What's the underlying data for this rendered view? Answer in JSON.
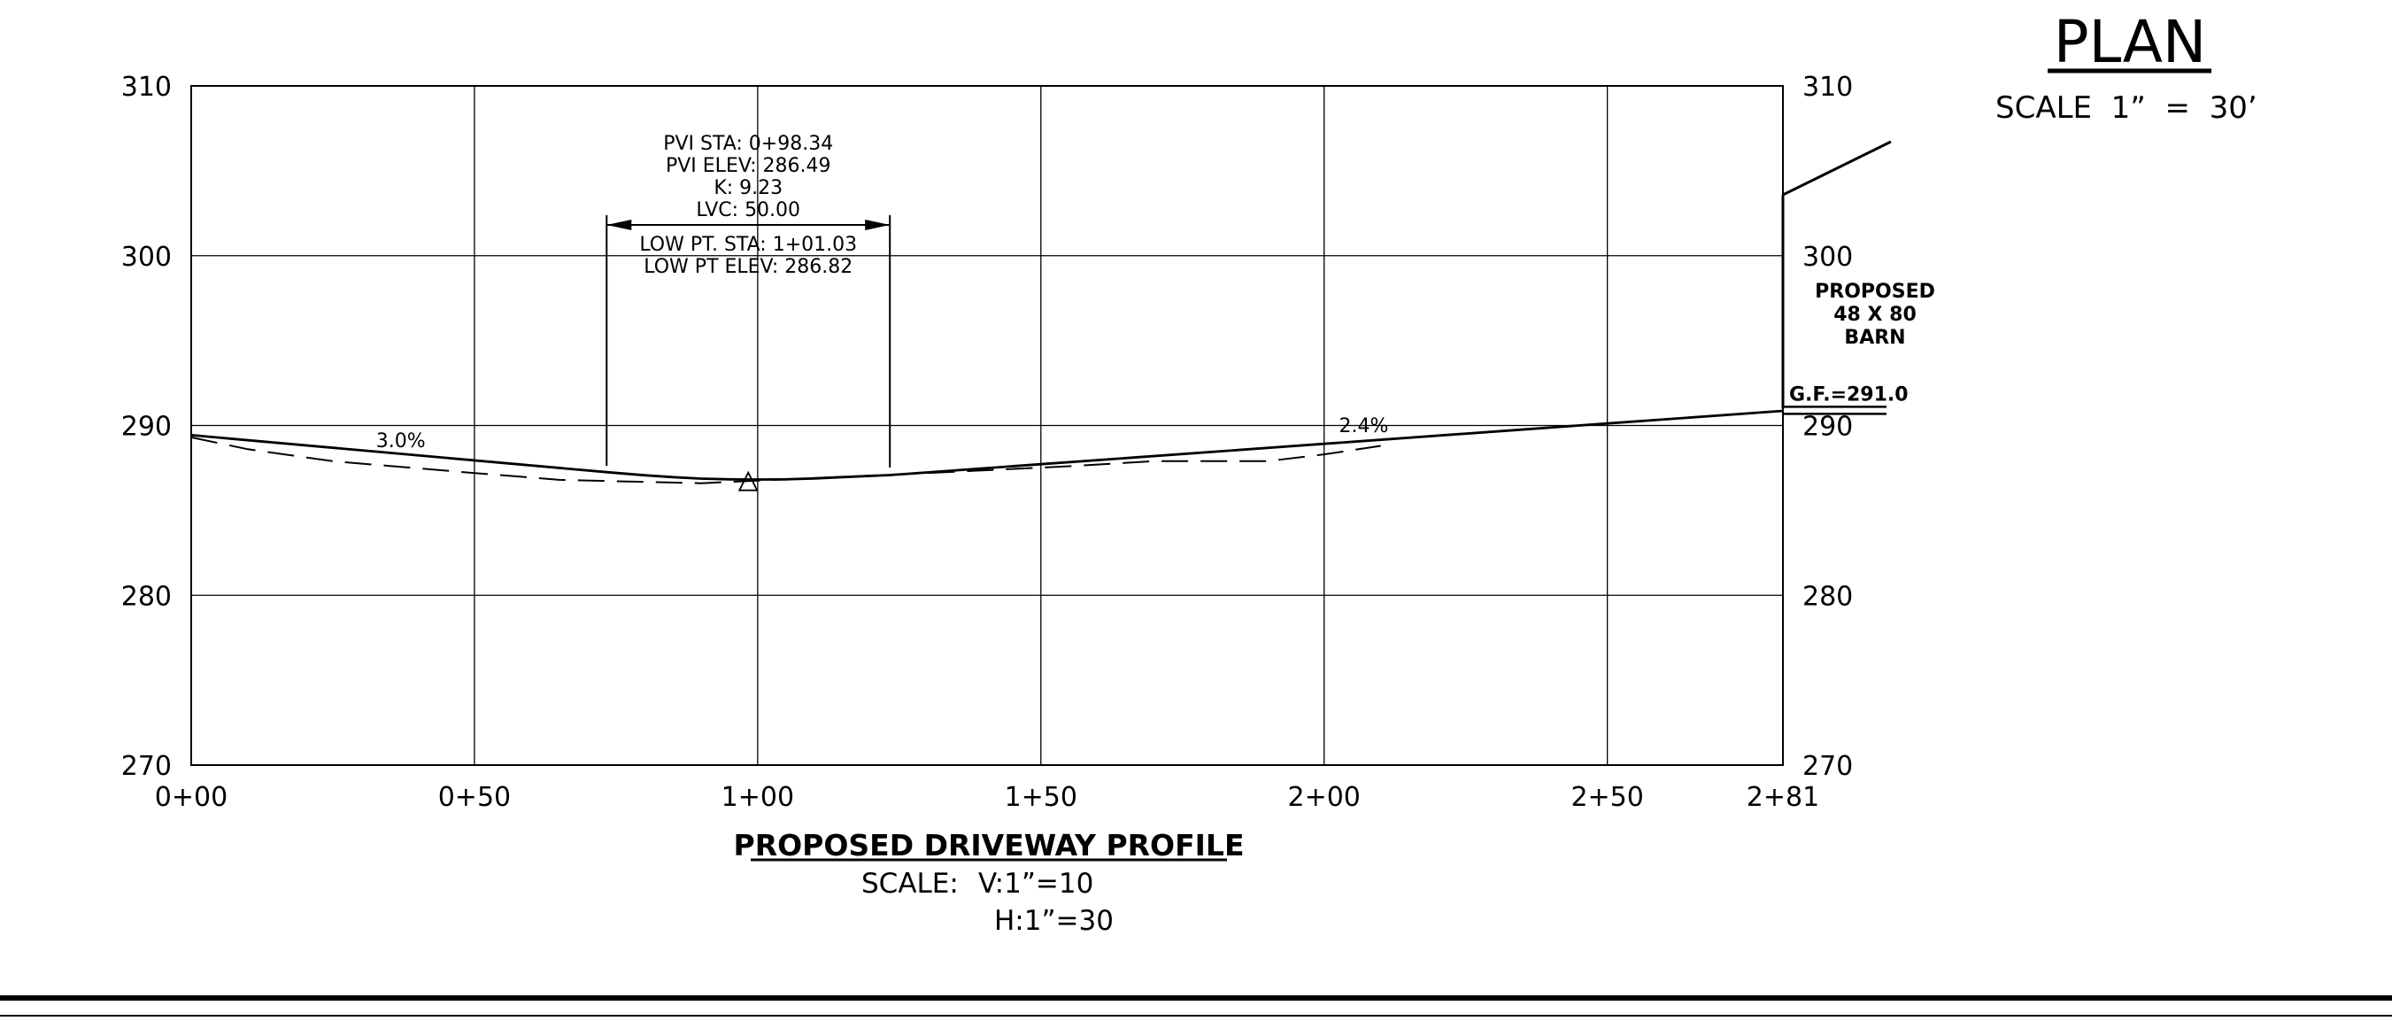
{
  "chart_data": {
    "type": "line",
    "x_ticks": [
      "0+00",
      "0+50",
      "1+00",
      "1+50",
      "2+00",
      "2+50",
      "2+81"
    ],
    "x_tick_values": [
      0,
      50,
      100,
      150,
      200,
      250,
      281
    ],
    "y_ticks": [
      270,
      280,
      290,
      300,
      310
    ],
    "xlim": [
      0,
      281
    ],
    "ylim": [
      270,
      310
    ],
    "grid": true,
    "series": [
      {
        "name": "",
        "style": "solid",
        "x": [
          0,
          73.34,
          80,
          85,
          90,
          95,
          98.34,
          101.03,
          105,
          110,
          115,
          123.34,
          150,
          200,
          250,
          281
        ],
        "y": [
          289.43,
          287.25,
          287.07,
          286.96,
          286.87,
          286.83,
          286.82,
          286.82,
          286.83,
          286.88,
          286.96,
          287.08,
          287.72,
          288.92,
          290.12,
          290.86
        ]
      },
      {
        "name": "",
        "style": "dashed",
        "x": [
          0,
          10,
          25,
          50,
          65,
          90,
          110,
          130,
          155,
          170,
          190,
          200,
          210
        ],
        "y": [
          289.3,
          288.6,
          287.9,
          287.2,
          286.8,
          286.6,
          286.9,
          287.2,
          287.6,
          287.9,
          287.9,
          288.3,
          288.8
        ]
      }
    ]
  },
  "profile": {
    "title": "PROPOSED DRIVEWAY PROFILE",
    "scale_label": "SCALE:",
    "scale_v": "V:1”=10",
    "scale_h": "H:1”=30"
  },
  "curve": {
    "pvi_sta": "PVI STA: 0+98.34",
    "pvi_elev": "PVI ELEV: 286.49",
    "k": "K: 9.23",
    "lvc": "LVC: 50.00",
    "low_pt_sta": "LOW PT. STA: 1+01.03",
    "low_pt_elev": "LOW PT ELEV: 286.82",
    "pvc_station": 73.34,
    "pvt_station": 123.34,
    "pvi_marker_station": 98.34,
    "pvi_marker_elev": 286.6
  },
  "grades": [
    {
      "label": "3.0%",
      "station": 37,
      "elev": 288.4
    },
    {
      "label": "2.4%",
      "station": 207,
      "elev": 289.3
    }
  ],
  "plan": {
    "title": "PLAN",
    "scale": "SCALE  1”  =  30’"
  },
  "barn": {
    "line1": "PROPOSED",
    "line2": "48 X 80",
    "line3": "BARN",
    "gf_label": "G.F.=291.0"
  },
  "colors": {
    "ink": "#000000",
    "paper": "#ffffff"
  }
}
